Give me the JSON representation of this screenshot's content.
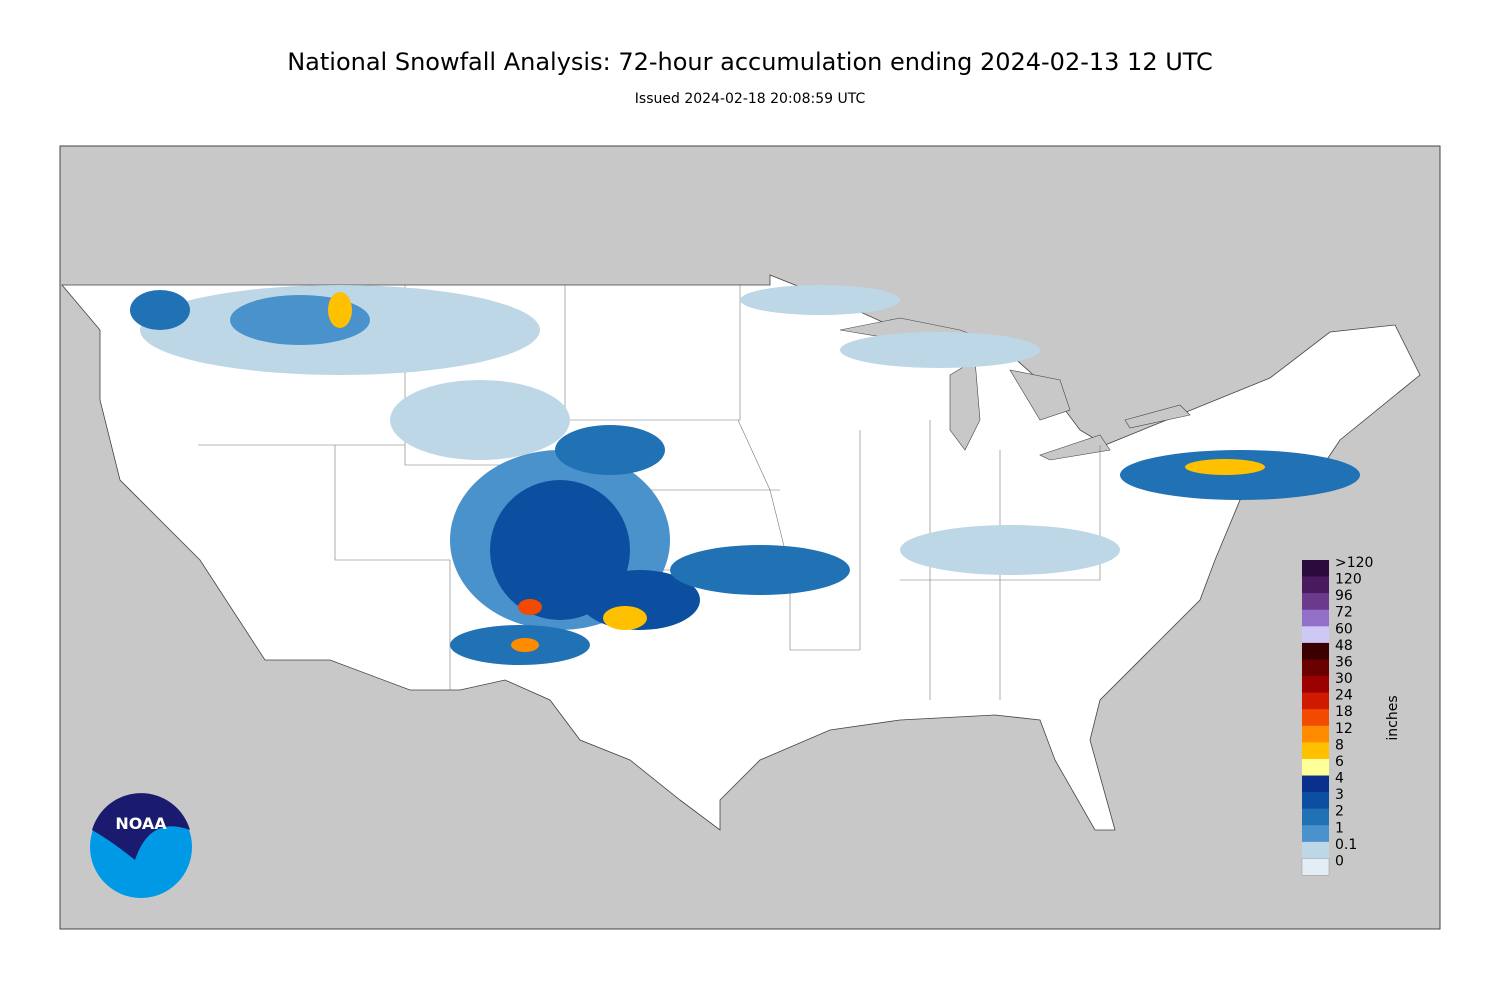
{
  "title": "National Snowfall Analysis: 72-hour accumulation ending 2024-02-13 12 UTC",
  "subtitle": "Issued 2024-02-18 20:08:59 UTC",
  "logo": "NOAA",
  "legend": {
    "label": "inches",
    "items": [
      {
        "label": ">120",
        "color": "#2b0a3d"
      },
      {
        "label": "120",
        "color": "#4a1a5e"
      },
      {
        "label": "96",
        "color": "#6c3a8c"
      },
      {
        "label": "72",
        "color": "#9370c8"
      },
      {
        "label": "60",
        "color": "#cdc8f6"
      },
      {
        "label": "48",
        "color": "#3a0000"
      },
      {
        "label": "36",
        "color": "#6b0000"
      },
      {
        "label": "30",
        "color": "#9c0000"
      },
      {
        "label": "24",
        "color": "#d01a00"
      },
      {
        "label": "18",
        "color": "#f24a00"
      },
      {
        "label": "12",
        "color": "#ff8c00"
      },
      {
        "label": "8",
        "color": "#ffc000"
      },
      {
        "label": "6",
        "color": "#ffff99"
      },
      {
        "label": "4",
        "color": "#08308c"
      },
      {
        "label": "3",
        "color": "#0c4ea0"
      },
      {
        "label": "2",
        "color": "#2171b5"
      },
      {
        "label": "1",
        "color": "#4a92cc"
      },
      {
        "label": "0.1",
        "color": "#bdd7e7"
      },
      {
        "label": "0",
        "color": "#e3edf6"
      }
    ]
  }
}
